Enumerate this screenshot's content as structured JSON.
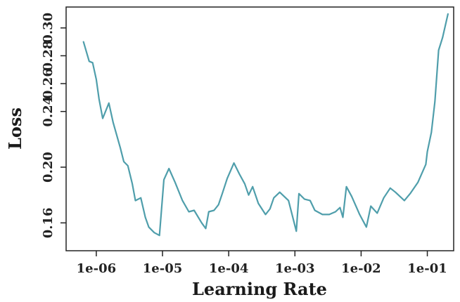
{
  "chart_data": {
    "type": "line",
    "xlabel": "Learning Rate",
    "ylabel": "Loss",
    "x_scale": "log",
    "xlim": [
      3.5e-07,
      0.25
    ],
    "ylim": [
      0.14,
      0.315
    ],
    "grid": false,
    "legend": "none",
    "line_color": "#4f9eab",
    "x_ticks": [
      {
        "value": 1e-06,
        "label": "1e-06"
      },
      {
        "value": 1e-05,
        "label": "1e-05"
      },
      {
        "value": 0.0001,
        "label": "1e-04"
      },
      {
        "value": 0.001,
        "label": "1e-03"
      },
      {
        "value": 0.01,
        "label": "1e-02"
      },
      {
        "value": 0.1,
        "label": "1e-01"
      }
    ],
    "y_ticks": [
      {
        "value": 0.16,
        "label": "0.16"
      },
      {
        "value": 0.2,
        "label": "0.20"
      },
      {
        "value": 0.24,
        "label": "0.24"
      },
      {
        "value": 0.26,
        "label": "0.26"
      },
      {
        "value": 0.28,
        "label": "0.28"
      },
      {
        "value": 0.3,
        "label": "0.30"
      }
    ],
    "series": [
      {
        "points": [
          [
            6.4e-07,
            0.29
          ],
          [
            7.8e-07,
            0.276
          ],
          [
            8.8e-07,
            0.275
          ],
          [
            1e-06,
            0.263
          ],
          [
            1.1e-06,
            0.249
          ],
          [
            1.25e-06,
            0.235
          ],
          [
            1.55e-06,
            0.246
          ],
          [
            1.8e-06,
            0.232
          ],
          [
            2.3e-06,
            0.214
          ],
          [
            2.6e-06,
            0.204
          ],
          [
            3e-06,
            0.201
          ],
          [
            3.5e-06,
            0.188
          ],
          [
            3.9e-06,
            0.176
          ],
          [
            4.7e-06,
            0.178
          ],
          [
            5.5e-06,
            0.164
          ],
          [
            6.2e-06,
            0.157
          ],
          [
            7.5e-06,
            0.153
          ],
          [
            9e-06,
            0.151
          ],
          [
            1.05e-05,
            0.191
          ],
          [
            1.25e-05,
            0.199
          ],
          [
            1.55e-05,
            0.189
          ],
          [
            2e-05,
            0.176
          ],
          [
            2.5e-05,
            0.168
          ],
          [
            3e-05,
            0.169
          ],
          [
            3.9e-05,
            0.16
          ],
          [
            4.5e-05,
            0.156
          ],
          [
            5e-05,
            0.168
          ],
          [
            6e-05,
            0.169
          ],
          [
            7e-05,
            0.173
          ],
          [
            8e-05,
            0.181
          ],
          [
            9.5e-05,
            0.192
          ],
          [
            0.00012,
            0.203
          ],
          [
            0.000145,
            0.195
          ],
          [
            0.000175,
            0.188
          ],
          [
            0.0002,
            0.18
          ],
          [
            0.00023,
            0.186
          ],
          [
            0.00028,
            0.174
          ],
          [
            0.00036,
            0.166
          ],
          [
            0.00042,
            0.17
          ],
          [
            0.00048,
            0.178
          ],
          [
            0.00059,
            0.182
          ],
          [
            0.0008,
            0.176
          ],
          [
            0.00105,
            0.154
          ],
          [
            0.00115,
            0.181
          ],
          [
            0.0014,
            0.177
          ],
          [
            0.0017,
            0.176
          ],
          [
            0.002,
            0.169
          ],
          [
            0.0026,
            0.166
          ],
          [
            0.0033,
            0.166
          ],
          [
            0.0041,
            0.168
          ],
          [
            0.0048,
            0.171
          ],
          [
            0.0053,
            0.164
          ],
          [
            0.006,
            0.186
          ],
          [
            0.0072,
            0.179
          ],
          [
            0.0095,
            0.166
          ],
          [
            0.012,
            0.157
          ],
          [
            0.014,
            0.172
          ],
          [
            0.0175,
            0.167
          ],
          [
            0.022,
            0.178
          ],
          [
            0.0275,
            0.185
          ],
          [
            0.033,
            0.182
          ],
          [
            0.045,
            0.176
          ],
          [
            0.055,
            0.181
          ],
          [
            0.072,
            0.189
          ],
          [
            0.095,
            0.202
          ],
          [
            0.1,
            0.211
          ],
          [
            0.115,
            0.225
          ],
          [
            0.13,
            0.247
          ],
          [
            0.148,
            0.284
          ],
          [
            0.17,
            0.293
          ],
          [
            0.205,
            0.31
          ]
        ]
      }
    ]
  }
}
